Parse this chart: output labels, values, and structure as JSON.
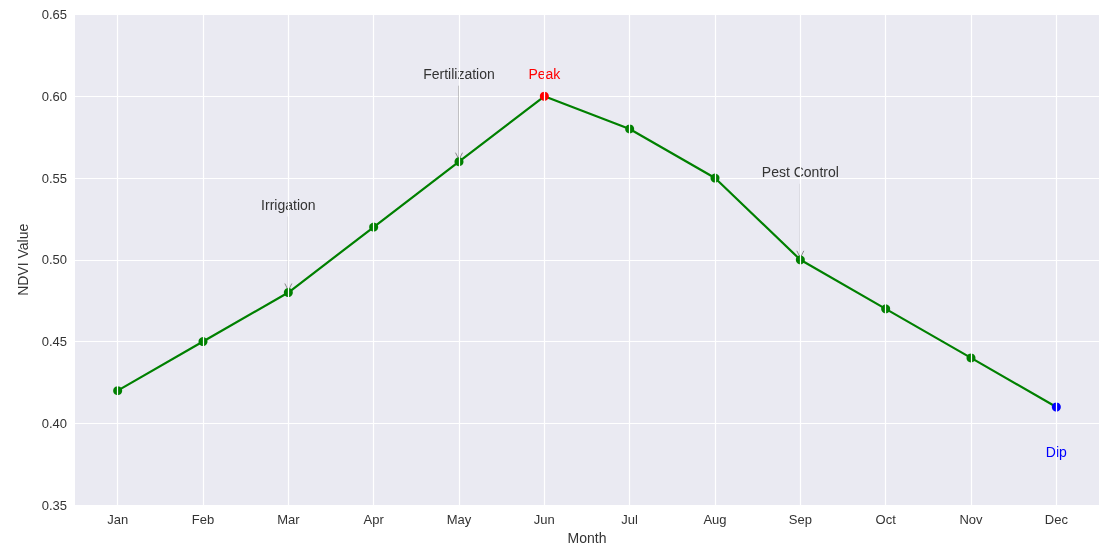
{
  "chart_data": {
    "type": "line",
    "xlabel": "Month",
    "ylabel": "NDVI Value",
    "categories": [
      "Jan",
      "Feb",
      "Mar",
      "Apr",
      "May",
      "Jun",
      "Jul",
      "Aug",
      "Sep",
      "Oct",
      "Nov",
      "Dec"
    ],
    "series": [
      {
        "color": "#008000",
        "colors": [
          "#008000",
          "#008000",
          "#008000",
          "#008000",
          "#008000",
          "#ff0000",
          "#008000",
          "#008000",
          "#008000",
          "#008000",
          "#008000",
          "#0000ff"
        ],
        "values": [
          0.42,
          0.45,
          0.48,
          0.52,
          0.56,
          0.6,
          0.58,
          0.55,
          0.5,
          0.47,
          0.44,
          0.41
        ]
      }
    ],
    "ylim": [
      0.35,
      0.65
    ],
    "yticks": [
      0.35,
      {
        "value": 0.4,
        "label": "0.40"
      },
      0.45,
      {
        "value": 0.5,
        "label": "0.50"
      },
      0.55,
      {
        "value": 0.6,
        "label": "0.60"
      },
      0.65
    ],
    "annotations": [
      {
        "text": "Irrigation",
        "x": "Mar",
        "y": 0.48
      },
      {
        "text": "Fertilization",
        "x": "May",
        "y": 0.56
      },
      {
        "text": "Peak",
        "x": "Jun",
        "y": 0.6
      },
      {
        "text": "Pest Control",
        "x": "Sep",
        "y": 0.5
      },
      {
        "text": "Dip",
        "x": "Dec",
        "y": 0.41
      }
    ],
    "grid": true,
    "marker": "circle",
    "line_style": "solid"
  }
}
